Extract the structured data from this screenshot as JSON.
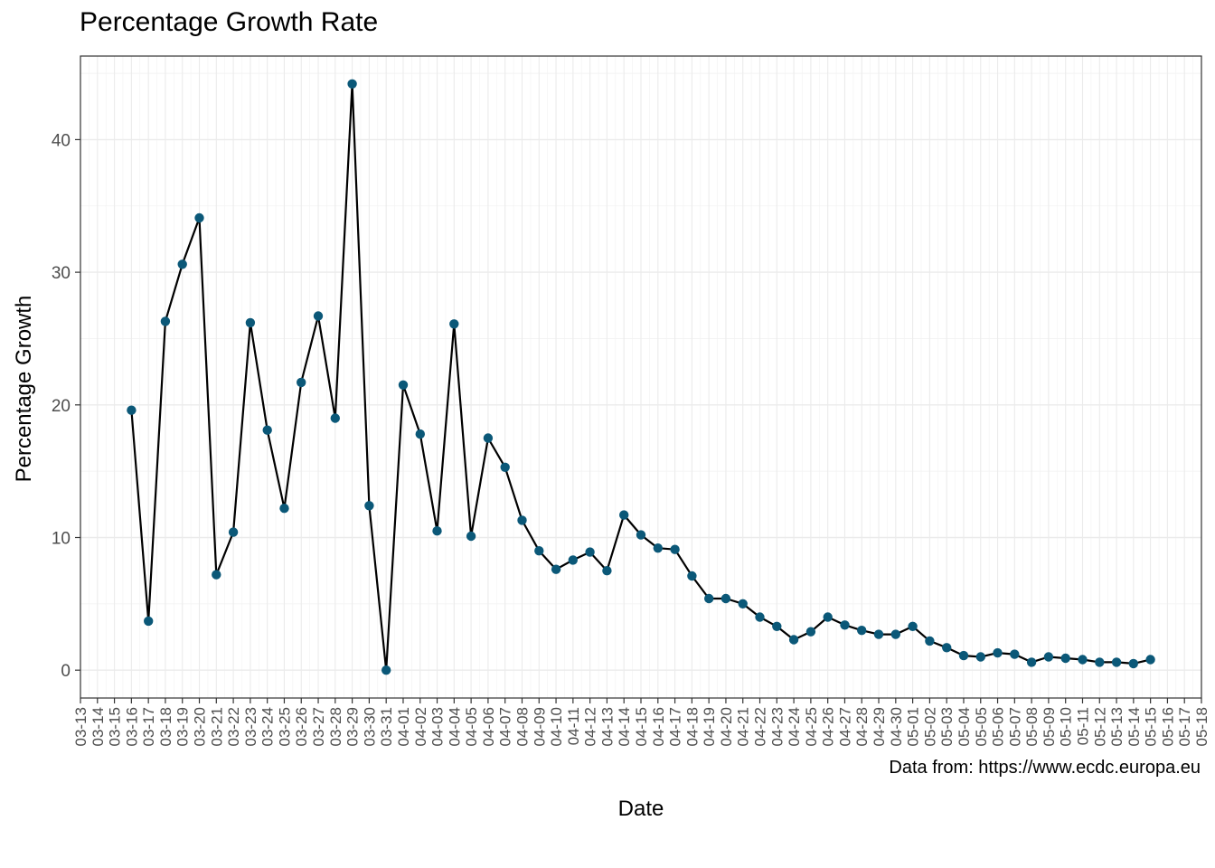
{
  "caption": "Data from: https://www.ecdc.europa.eu",
  "chart_data": {
    "type": "line",
    "title": "Percentage Growth Rate",
    "xlabel": "Date",
    "ylabel": "Percentage Growth",
    "x_tick_labels": [
      "03-13",
      "03-14",
      "03-15",
      "03-16",
      "03-17",
      "03-18",
      "03-19",
      "03-20",
      "03-21",
      "03-22",
      "03-23",
      "03-24",
      "03-25",
      "03-26",
      "03-27",
      "03-28",
      "03-29",
      "03-30",
      "03-31",
      "04-01",
      "04-02",
      "04-03",
      "04-04",
      "04-05",
      "04-06",
      "04-07",
      "04-08",
      "04-09",
      "04-10",
      "04-11",
      "04-12",
      "04-13",
      "04-14",
      "04-15",
      "04-16",
      "04-17",
      "04-18",
      "04-19",
      "04-20",
      "04-21",
      "04-22",
      "04-23",
      "04-24",
      "04-25",
      "04-26",
      "04-27",
      "04-28",
      "04-29",
      "04-30",
      "05-01",
      "05-02",
      "05-03",
      "05-04",
      "05-05",
      "05-06",
      "05-07",
      "05-08",
      "05-09",
      "05-10",
      "05-11",
      "05-12",
      "05-13",
      "05-14",
      "05-15",
      "05-16",
      "05-17",
      "05-18"
    ],
    "y_ticks": [
      0,
      10,
      20,
      30,
      40
    ],
    "ylim": [
      -2.1,
      46.3
    ],
    "xlim": [
      "03-13",
      "05-18"
    ],
    "grid": true,
    "point_color": "#0b5878",
    "line_color": "#000000",
    "series": [
      {
        "x": [
          "03-16",
          "03-17",
          "03-18",
          "03-19",
          "03-20",
          "03-21",
          "03-22",
          "03-23",
          "03-24",
          "03-25",
          "03-26",
          "03-27",
          "03-28",
          "03-29",
          "03-30",
          "03-31",
          "04-01",
          "04-02",
          "04-03",
          "04-04",
          "04-05",
          "04-06",
          "04-07",
          "04-08",
          "04-09",
          "04-10",
          "04-11",
          "04-12",
          "04-13",
          "04-14",
          "04-15",
          "04-16",
          "04-17",
          "04-18",
          "04-19",
          "04-20",
          "04-21",
          "04-22",
          "04-23",
          "04-24",
          "04-25",
          "04-26",
          "04-27",
          "04-28",
          "04-29",
          "04-30",
          "05-01",
          "05-02",
          "05-03",
          "05-04",
          "05-05",
          "05-06",
          "05-07",
          "05-08",
          "05-09",
          "05-10",
          "05-11",
          "05-12",
          "05-13",
          "05-14",
          "05-15"
        ],
        "values": [
          19.6,
          3.7,
          26.3,
          30.6,
          34.1,
          7.2,
          10.4,
          26.2,
          18.1,
          12.2,
          21.7,
          26.7,
          19.0,
          44.2,
          12.4,
          0.0,
          21.5,
          17.8,
          10.5,
          26.1,
          10.1,
          17.5,
          15.3,
          11.3,
          9.0,
          7.6,
          8.3,
          8.9,
          7.5,
          11.7,
          10.2,
          9.2,
          9.1,
          7.1,
          5.4,
          5.4,
          5.0,
          4.0,
          3.3,
          2.3,
          2.9,
          4.0,
          3.4,
          3.0,
          2.7,
          2.7,
          3.3,
          2.2,
          1.7,
          1.1,
          1.0,
          1.3,
          1.2,
          0.6,
          1.0,
          0.9,
          0.8,
          0.6,
          0.6,
          0.5,
          0.8
        ]
      }
    ]
  }
}
